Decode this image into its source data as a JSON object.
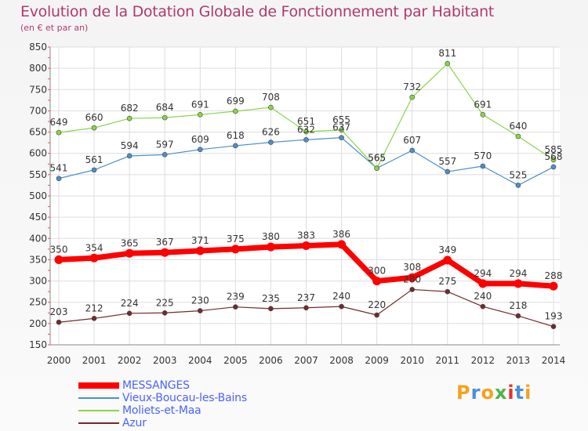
{
  "title": "Evolution de la Dotation Globale de Fonctionnement par Habitant",
  "subtitle": "(en € et par an)",
  "logo": {
    "text": "Proxiti",
    "colors": [
      "#f6a21c",
      "#4a90d9",
      "#f6a21c",
      "#4ab648",
      "#e8302a",
      "#4a90d9",
      "#f6a21c"
    ]
  },
  "chart_data": {
    "type": "line",
    "x": [
      "2000",
      "2001",
      "2002",
      "2003",
      "2004",
      "2005",
      "2006",
      "2007",
      "2008",
      "2009",
      "2010",
      "2011",
      "2012",
      "2013",
      "2014"
    ],
    "ylim": [
      150,
      850
    ],
    "yticks": [
      "150",
      "200",
      "250",
      "300",
      "350",
      "400",
      "450",
      "500",
      "550",
      "600",
      "650",
      "700",
      "750",
      "800",
      "850"
    ],
    "grid": true,
    "legend_position": "bottom-left",
    "series": [
      {
        "name": "MESSANGES",
        "color": "#ff0000",
        "values": [
          350,
          354,
          365,
          367,
          371,
          375,
          380,
          383,
          386,
          300,
          308,
          349,
          294,
          294,
          288
        ]
      },
      {
        "name": "Vieux-Boucau-les-Bains",
        "color": "#4d8fc9",
        "values": [
          541,
          561,
          594,
          597,
          609,
          618,
          626,
          632,
          637,
          565,
          607,
          557,
          570,
          525,
          568
        ]
      },
      {
        "name": "Moliets-et-Maa",
        "color": "#88d64a",
        "values": [
          649,
          660,
          682,
          684,
          691,
          699,
          708,
          651,
          655,
          565,
          732,
          811,
          691,
          640,
          585
        ]
      },
      {
        "name": "Azur",
        "color": "#722b2b",
        "values": [
          203,
          212,
          224,
          225,
          230,
          239,
          235,
          237,
          240,
          220,
          280,
          275,
          240,
          218,
          193
        ]
      }
    ]
  }
}
